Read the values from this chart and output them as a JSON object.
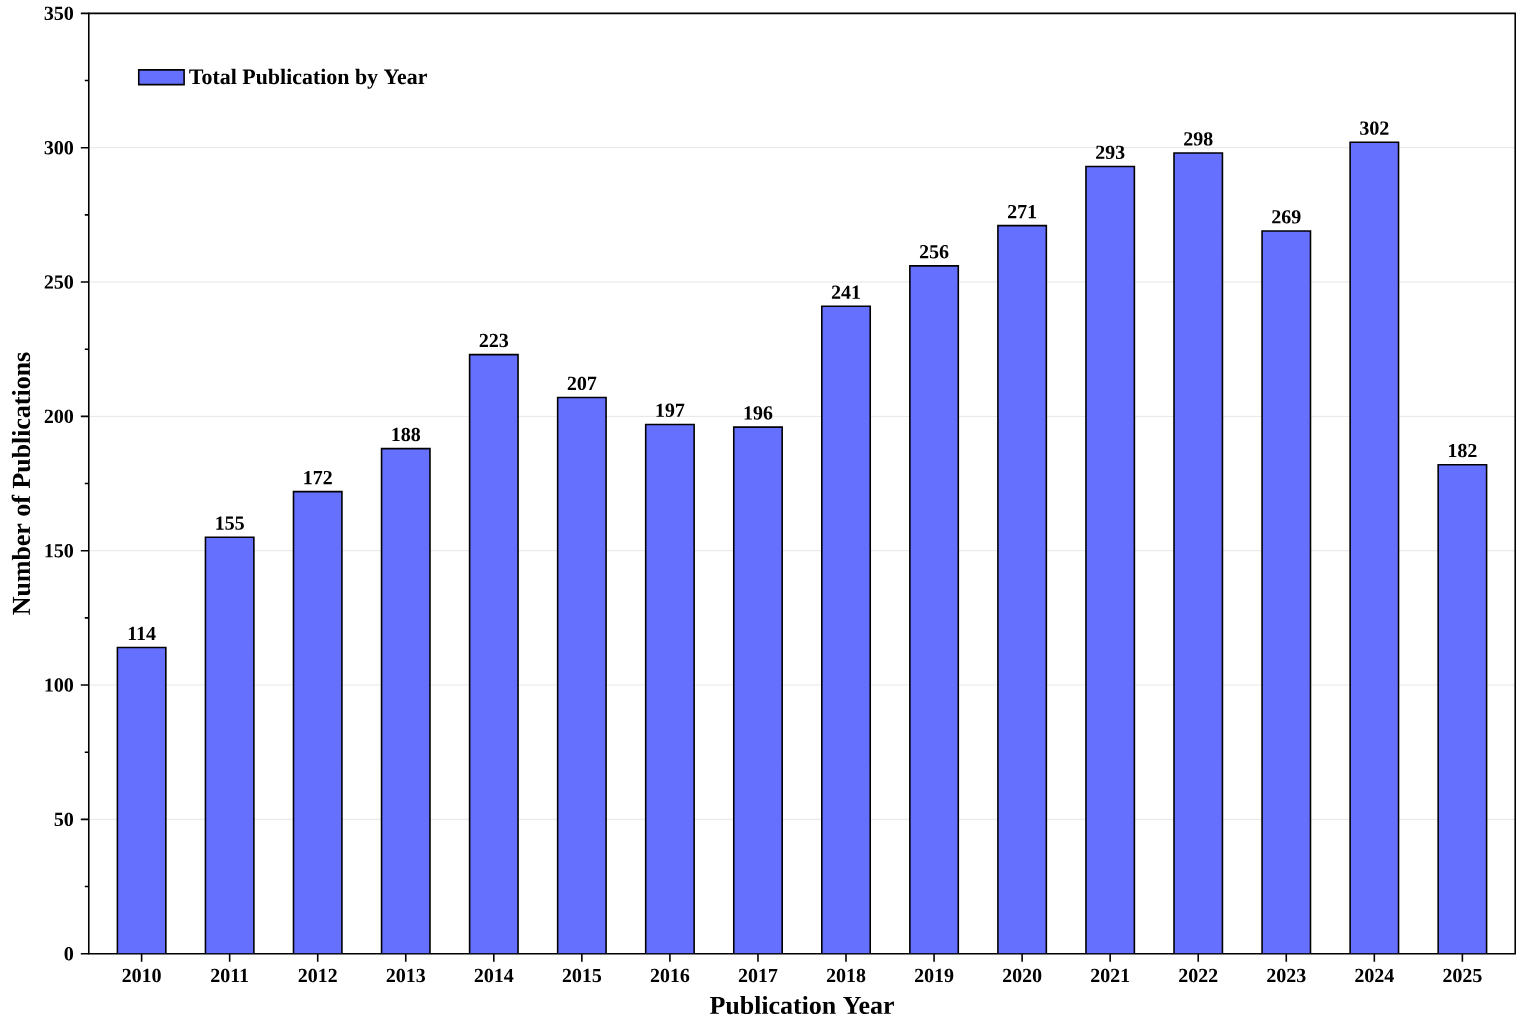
{
  "chart_data": {
    "type": "bar",
    "xlabel": "Publication Year",
    "ylabel": "Number of  Publications",
    "categories": [
      "2010",
      "2011",
      "2012",
      "2013",
      "2014",
      "2015",
      "2016",
      "2017",
      "2018",
      "2019",
      "2020",
      "2021",
      "2022",
      "2023",
      "2024",
      "2025"
    ],
    "series": [
      {
        "name": "Total Publication by Year",
        "color": "#6670ff",
        "values": [
          114,
          155,
          172,
          188,
          223,
          207,
          197,
          196,
          241,
          256,
          271,
          293,
          298,
          269,
          302,
          182
        ]
      }
    ],
    "ylim": [
      0,
      350
    ],
    "yticks": [
      0,
      50,
      100,
      150,
      200,
      250,
      300,
      350
    ],
    "grid": "y",
    "legend": "top left",
    "data_labels": true
  }
}
